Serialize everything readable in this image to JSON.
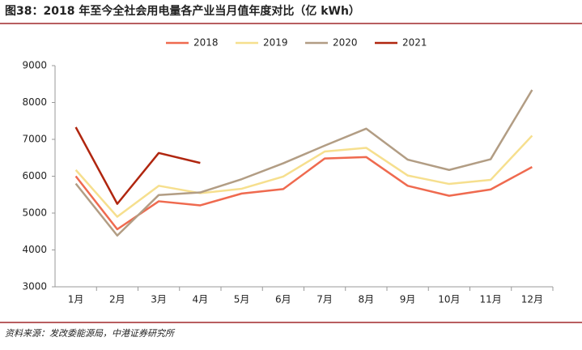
{
  "chart_data": {
    "type": "line",
    "title": "图38：2018 年至今全社会用电量各产业当月值年度对比（亿 kWh）",
    "source": "资料来源：发改委能源局，中港证券研究所",
    "categories": [
      "1月",
      "2月",
      "3月",
      "4月",
      "5月",
      "6月",
      "7月",
      "8月",
      "9月",
      "10月",
      "11月",
      "12月"
    ],
    "series": [
      {
        "name": "2018",
        "color": "#ef6a4f",
        "values": [
          6000,
          4560,
          5320,
          5210,
          5530,
          5650,
          6480,
          6520,
          5740,
          5470,
          5640,
          6250
        ]
      },
      {
        "name": "2019",
        "color": "#f6df8e",
        "values": [
          6170,
          4900,
          5740,
          5540,
          5660,
          5990,
          6670,
          6770,
          6020,
          5790,
          5900,
          7100
        ]
      },
      {
        "name": "2020",
        "color": "#b29d84",
        "values": [
          5800,
          4390,
          5490,
          5560,
          5920,
          6350,
          6830,
          7290,
          6450,
          6170,
          6460,
          8340
        ]
      },
      {
        "name": "2021",
        "color": "#b0260f",
        "values": [
          7330,
          5250,
          6630,
          6360,
          null,
          null,
          null,
          null,
          null,
          null,
          null,
          null
        ]
      }
    ],
    "ylim": [
      3000,
      9000
    ],
    "yticks": [
      3000,
      4000,
      5000,
      6000,
      7000,
      8000,
      9000
    ],
    "grid": false
  }
}
